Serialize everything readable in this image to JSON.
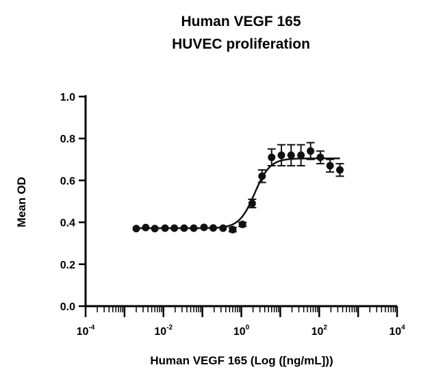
{
  "chart_data": {
    "type": "scatter",
    "title": "Human VEGF 165",
    "subtitle": "HUVEC proliferation",
    "xlabel": "Human  VEGF 165 (Log ([ng/mL]))",
    "ylabel": "Mean OD",
    "x_scale": "log",
    "xlim": [
      0.0001,
      10000
    ],
    "ylim": [
      0,
      1.0
    ],
    "x_ticks": [
      {
        "base": "10",
        "exp": "-4",
        "value": 0.0001
      },
      {
        "base": "10",
        "exp": "-2",
        "value": 0.01
      },
      {
        "base": "10",
        "exp": "0",
        "value": 1
      },
      {
        "base": "10",
        "exp": "2",
        "value": 100
      },
      {
        "base": "10",
        "exp": "4",
        "value": 10000
      }
    ],
    "y_ticks": [
      "0.0",
      "0.2",
      "0.4",
      "0.6",
      "0.8",
      "1.0"
    ],
    "grid": false,
    "legend": "none",
    "marker_color": "#111111",
    "series": [
      {
        "x": [
          0.002,
          0.0035,
          0.006,
          0.011,
          0.019,
          0.034,
          0.06,
          0.11,
          0.19,
          0.34,
          0.6,
          1.07,
          1.9,
          3.4,
          6.0,
          10.7,
          19.0,
          34.0,
          60.0,
          107.0,
          190.0,
          340.0
        ],
        "y": [
          0.37,
          0.375,
          0.37,
          0.372,
          0.372,
          0.372,
          0.372,
          0.376,
          0.373,
          0.372,
          0.365,
          0.39,
          0.49,
          0.62,
          0.71,
          0.72,
          0.72,
          0.72,
          0.74,
          0.71,
          0.67,
          0.65
        ],
        "err": [
          0.005,
          0.005,
          0.005,
          0.005,
          0.005,
          0.005,
          0.005,
          0.005,
          0.005,
          0.005,
          0.01,
          0.01,
          0.02,
          0.03,
          0.04,
          0.05,
          0.05,
          0.05,
          0.04,
          0.03,
          0.03,
          0.03
        ]
      }
    ],
    "fit_curve": {
      "type": "four-parameter-logistic",
      "bottom": 0.372,
      "top": 0.705,
      "ec50": 2.2,
      "hill": 2.2,
      "x_range": [
        0.002,
        340
      ]
    }
  }
}
